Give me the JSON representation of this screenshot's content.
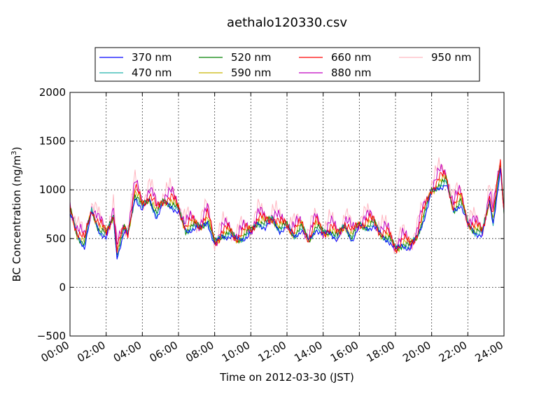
{
  "chart_data": {
    "type": "line",
    "title": "aethalo120330.csv",
    "xlabel": "Time on 2012-03-30 (JST)",
    "ylabel_main": "BC Concentration (ng/m",
    "ylabel_sup": "3",
    "ylabel_close": ")",
    "ylim": [
      -500,
      2000
    ],
    "xlim": [
      0,
      24
    ],
    "y_ticks": [
      {
        "value": -500,
        "label": "−500"
      },
      {
        "value": 0,
        "label": "0"
      },
      {
        "value": 500,
        "label": "500"
      },
      {
        "value": 1000,
        "label": "1000"
      },
      {
        "value": 1500,
        "label": "1500"
      },
      {
        "value": 2000,
        "label": "2000"
      }
    ],
    "x_ticks": [
      {
        "value": 0,
        "label": "00:00"
      },
      {
        "value": 2,
        "label": "02:00"
      },
      {
        "value": 4,
        "label": "04:00"
      },
      {
        "value": 6,
        "label": "06:00"
      },
      {
        "value": 8,
        "label": "08:00"
      },
      {
        "value": 10,
        "label": "10:00"
      },
      {
        "value": 12,
        "label": "12:00"
      },
      {
        "value": 14,
        "label": "14:00"
      },
      {
        "value": 16,
        "label": "16:00"
      },
      {
        "value": 18,
        "label": "18:00"
      },
      {
        "value": 20,
        "label": "20:00"
      },
      {
        "value": 22,
        "label": "22:00"
      },
      {
        "value": 24,
        "label": "24:00"
      }
    ],
    "grid": true,
    "legend_placement": "top-center above plot",
    "base_x": [
      0,
      0.4,
      0.8,
      1.2,
      1.6,
      2.0,
      2.4,
      2.6,
      3.0,
      3.2,
      3.6,
      4.0,
      4.4,
      4.8,
      5.2,
      5.6,
      6.0,
      6.4,
      6.8,
      7.2,
      7.6,
      8.0,
      8.4,
      8.8,
      9.2,
      9.6,
      10.0,
      10.4,
      10.8,
      11.2,
      11.6,
      12.0,
      12.4,
      12.8,
      13.2,
      13.6,
      14.0,
      14.4,
      14.8,
      15.2,
      15.6,
      16.0,
      16.4,
      16.8,
      17.2,
      17.6,
      18.0,
      18.4,
      18.8,
      19.2,
      19.6,
      20.0,
      20.4,
      20.8,
      21.2,
      21.6,
      22.0,
      22.4,
      22.8,
      23.2,
      23.4,
      23.8,
      24.0
    ],
    "base_y": [
      800,
      560,
      450,
      800,
      620,
      540,
      760,
      350,
      600,
      560,
      980,
      830,
      940,
      760,
      900,
      880,
      800,
      610,
      640,
      630,
      720,
      450,
      560,
      560,
      510,
      540,
      580,
      700,
      650,
      720,
      620,
      640,
      560,
      620,
      500,
      640,
      560,
      600,
      520,
      660,
      520,
      650,
      650,
      660,
      560,
      520,
      400,
      470,
      420,
      550,
      760,
      1000,
      1080,
      1100,
      820,
      900,
      670,
      600,
      560,
      920,
      700,
      1250,
      780
    ],
    "series": [
      {
        "name": "370 nm",
        "color": "#0000ff",
        "scale": 0.97,
        "offset": -15,
        "amp": 45
      },
      {
        "name": "470 nm",
        "color": "#20b2aa",
        "scale": 0.98,
        "offset": -10,
        "amp": 55
      },
      {
        "name": "520 nm",
        "color": "#008000",
        "scale": 0.99,
        "offset": -5,
        "amp": 60
      },
      {
        "name": "590 nm",
        "color": "#c8b400",
        "scale": 1.0,
        "offset": 0,
        "amp": 70
      },
      {
        "name": "660 nm",
        "color": "#ff0000",
        "scale": 1.02,
        "offset": 10,
        "amp": 85
      },
      {
        "name": "880 nm",
        "color": "#c000c0",
        "scale": 1.05,
        "offset": 20,
        "amp": 110
      },
      {
        "name": "950 nm",
        "color": "#ffb6c1",
        "scale": 1.07,
        "offset": 30,
        "amp": 150
      }
    ]
  }
}
